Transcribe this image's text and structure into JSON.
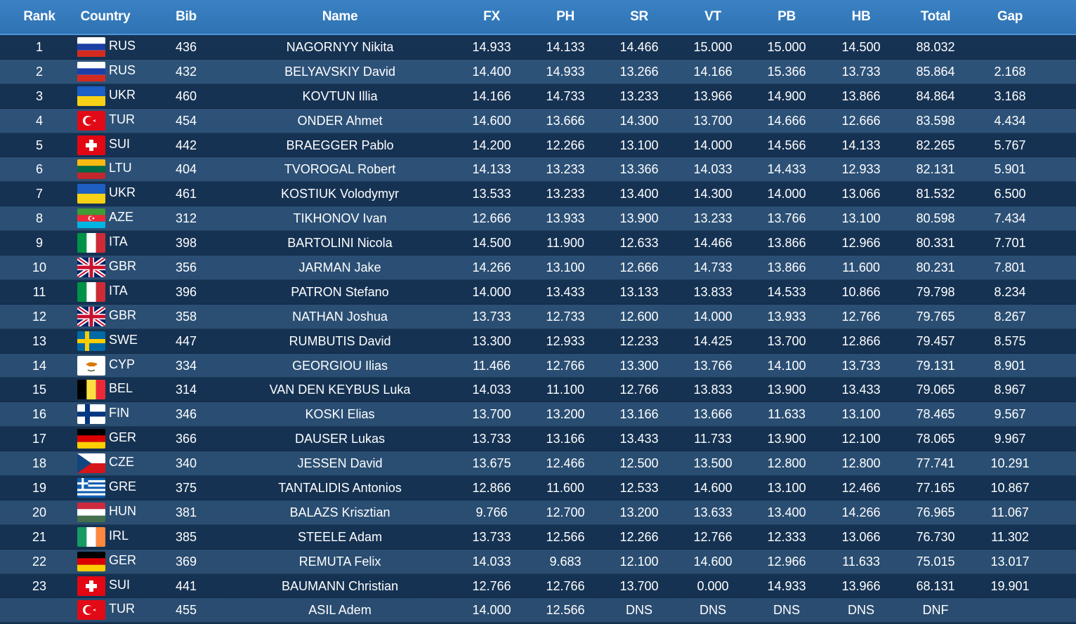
{
  "table": {
    "headers": {
      "rank": "Rank",
      "country": "Country",
      "bib": "Bib",
      "name": "Name",
      "fx": "FX",
      "ph": "PH",
      "sr": "SR",
      "vt": "VT",
      "pb": "PB",
      "hb": "HB",
      "total": "Total",
      "gap": "Gap"
    },
    "rows": [
      {
        "rank": "1",
        "country": "RUS",
        "flag": "russia-flag-icon",
        "bib": "436",
        "name": "NAGORNYY Nikita",
        "fx": "14.933",
        "ph": "14.133",
        "sr": "14.466",
        "vt": "15.000",
        "pb": "15.000",
        "hb": "14.500",
        "total": "88.032",
        "gap": ""
      },
      {
        "rank": "2",
        "country": "RUS",
        "flag": "russia-flag-icon",
        "bib": "432",
        "name": "BELYAVSKIY David",
        "fx": "14.400",
        "ph": "14.933",
        "sr": "13.266",
        "vt": "14.166",
        "pb": "15.366",
        "hb": "13.733",
        "total": "85.864",
        "gap": "2.168"
      },
      {
        "rank": "3",
        "country": "UKR",
        "flag": "ukraine-flag-icon",
        "bib": "460",
        "name": "KOVTUN Illia",
        "fx": "14.166",
        "ph": "14.733",
        "sr": "13.233",
        "vt": "13.966",
        "pb": "14.900",
        "hb": "13.866",
        "total": "84.864",
        "gap": "3.168"
      },
      {
        "rank": "4",
        "country": "TUR",
        "flag": "turkey-flag-icon",
        "bib": "454",
        "name": "ONDER Ahmet",
        "fx": "14.600",
        "ph": "13.666",
        "sr": "14.300",
        "vt": "13.700",
        "pb": "14.666",
        "hb": "12.666",
        "total": "83.598",
        "gap": "4.434"
      },
      {
        "rank": "5",
        "country": "SUI",
        "flag": "switzerland-flag-icon",
        "bib": "442",
        "name": "BRAEGGER Pablo",
        "fx": "14.200",
        "ph": "12.266",
        "sr": "13.100",
        "vt": "14.000",
        "pb": "14.566",
        "hb": "14.133",
        "total": "82.265",
        "gap": "5.767"
      },
      {
        "rank": "6",
        "country": "LTU",
        "flag": "lithuania-flag-icon",
        "bib": "404",
        "name": "TVOROGAL Robert",
        "fx": "14.133",
        "ph": "13.233",
        "sr": "13.366",
        "vt": "14.033",
        "pb": "14.433",
        "hb": "12.933",
        "total": "82.131",
        "gap": "5.901"
      },
      {
        "rank": "7",
        "country": "UKR",
        "flag": "ukraine-flag-icon",
        "bib": "461",
        "name": "KOSTIUK Volodymyr",
        "fx": "13.533",
        "ph": "13.233",
        "sr": "13.400",
        "vt": "14.300",
        "pb": "14.000",
        "hb": "13.066",
        "total": "81.532",
        "gap": "6.500"
      },
      {
        "rank": "8",
        "country": "AZE",
        "flag": "azerbaijan-flag-icon",
        "bib": "312",
        "name": "TIKHONOV Ivan",
        "fx": "12.666",
        "ph": "13.933",
        "sr": "13.900",
        "vt": "13.233",
        "pb": "13.766",
        "hb": "13.100",
        "total": "80.598",
        "gap": "7.434"
      },
      {
        "rank": "9",
        "country": "ITA",
        "flag": "italy-flag-icon",
        "bib": "398",
        "name": "BARTOLINI Nicola",
        "fx": "14.500",
        "ph": "11.900",
        "sr": "12.633",
        "vt": "14.466",
        "pb": "13.866",
        "hb": "12.966",
        "total": "80.331",
        "gap": "7.701"
      },
      {
        "rank": "10",
        "country": "GBR",
        "flag": "uk-flag-icon",
        "bib": "356",
        "name": "JARMAN Jake",
        "fx": "14.266",
        "ph": "13.100",
        "sr": "12.666",
        "vt": "14.733",
        "pb": "13.866",
        "hb": "11.600",
        "total": "80.231",
        "gap": "7.801"
      },
      {
        "rank": "11",
        "country": "ITA",
        "flag": "italy-flag-icon",
        "bib": "396",
        "name": "PATRON Stefano",
        "fx": "14.000",
        "ph": "13.433",
        "sr": "13.133",
        "vt": "13.833",
        "pb": "14.533",
        "hb": "10.866",
        "total": "79.798",
        "gap": "8.234"
      },
      {
        "rank": "12",
        "country": "GBR",
        "flag": "uk-flag-icon",
        "bib": "358",
        "name": "NATHAN Joshua",
        "fx": "13.733",
        "ph": "12.733",
        "sr": "12.600",
        "vt": "14.000",
        "pb": "13.933",
        "hb": "12.766",
        "total": "79.765",
        "gap": "8.267"
      },
      {
        "rank": "13",
        "country": "SWE",
        "flag": "sweden-flag-icon",
        "bib": "447",
        "name": "RUMBUTIS David",
        "fx": "13.300",
        "ph": "12.933",
        "sr": "12.233",
        "vt": "14.425",
        "pb": "13.700",
        "hb": "12.866",
        "total": "79.457",
        "gap": "8.575"
      },
      {
        "rank": "14",
        "country": "CYP",
        "flag": "cyprus-flag-icon",
        "bib": "334",
        "name": "GEORGIOU Ilias",
        "fx": "11.466",
        "ph": "12.766",
        "sr": "13.300",
        "vt": "13.766",
        "pb": "14.100",
        "hb": "13.733",
        "total": "79.131",
        "gap": "8.901"
      },
      {
        "rank": "15",
        "country": "BEL",
        "flag": "belgium-flag-icon",
        "bib": "314",
        "name": "VAN DEN KEYBUS Luka",
        "fx": "14.033",
        "ph": "11.100",
        "sr": "12.766",
        "vt": "13.833",
        "pb": "13.900",
        "hb": "13.433",
        "total": "79.065",
        "gap": "8.967"
      },
      {
        "rank": "16",
        "country": "FIN",
        "flag": "finland-flag-icon",
        "bib": "346",
        "name": "KOSKI Elias",
        "fx": "13.700",
        "ph": "13.200",
        "sr": "13.166",
        "vt": "13.666",
        "pb": "11.633",
        "hb": "13.100",
        "total": "78.465",
        "gap": "9.567"
      },
      {
        "rank": "17",
        "country": "GER",
        "flag": "germany-flag-icon",
        "bib": "366",
        "name": "DAUSER Lukas",
        "fx": "13.733",
        "ph": "13.166",
        "sr": "13.433",
        "vt": "11.733",
        "pb": "13.900",
        "hb": "12.100",
        "total": "78.065",
        "gap": "9.967"
      },
      {
        "rank": "18",
        "country": "CZE",
        "flag": "czech-flag-icon",
        "bib": "340",
        "name": "JESSEN David",
        "fx": "13.675",
        "ph": "12.466",
        "sr": "12.500",
        "vt": "13.500",
        "pb": "12.800",
        "hb": "12.800",
        "total": "77.741",
        "gap": "10.291"
      },
      {
        "rank": "19",
        "country": "GRE",
        "flag": "greece-flag-icon",
        "bib": "375",
        "name": "TANTALIDIS Antonios",
        "fx": "12.866",
        "ph": "11.600",
        "sr": "12.533",
        "vt": "14.600",
        "pb": "13.100",
        "hb": "12.466",
        "total": "77.165",
        "gap": "10.867"
      },
      {
        "rank": "20",
        "country": "HUN",
        "flag": "hungary-flag-icon",
        "bib": "381",
        "name": "BALAZS Krisztian",
        "fx": "9.766",
        "ph": "12.700",
        "sr": "13.200",
        "vt": "13.633",
        "pb": "13.400",
        "hb": "14.266",
        "total": "76.965",
        "gap": "11.067"
      },
      {
        "rank": "21",
        "country": "IRL",
        "flag": "ireland-flag-icon",
        "bib": "385",
        "name": "STEELE Adam",
        "fx": "13.733",
        "ph": "12.566",
        "sr": "12.266",
        "vt": "12.766",
        "pb": "12.333",
        "hb": "13.066",
        "total": "76.730",
        "gap": "11.302"
      },
      {
        "rank": "22",
        "country": "GER",
        "flag": "germany-flag-icon",
        "bib": "369",
        "name": "REMUTA Felix",
        "fx": "14.033",
        "ph": "9.683",
        "sr": "12.100",
        "vt": "14.600",
        "pb": "12.966",
        "hb": "11.633",
        "total": "75.015",
        "gap": "13.017"
      },
      {
        "rank": "23",
        "country": "SUI",
        "flag": "switzerland-flag-icon",
        "bib": "441",
        "name": "BAUMANN Christian",
        "fx": "12.766",
        "ph": "12.766",
        "sr": "13.700",
        "vt": "0.000",
        "pb": "14.933",
        "hb": "13.966",
        "total": "68.131",
        "gap": "19.901"
      },
      {
        "rank": "",
        "country": "TUR",
        "flag": "turkey-flag-icon",
        "bib": "455",
        "name": "ASIL Adem",
        "fx": "14.000",
        "ph": "12.566",
        "sr": "DNS",
        "vt": "DNS",
        "pb": "DNS",
        "hb": "DNS",
        "total": "DNF",
        "gap": ""
      }
    ]
  }
}
